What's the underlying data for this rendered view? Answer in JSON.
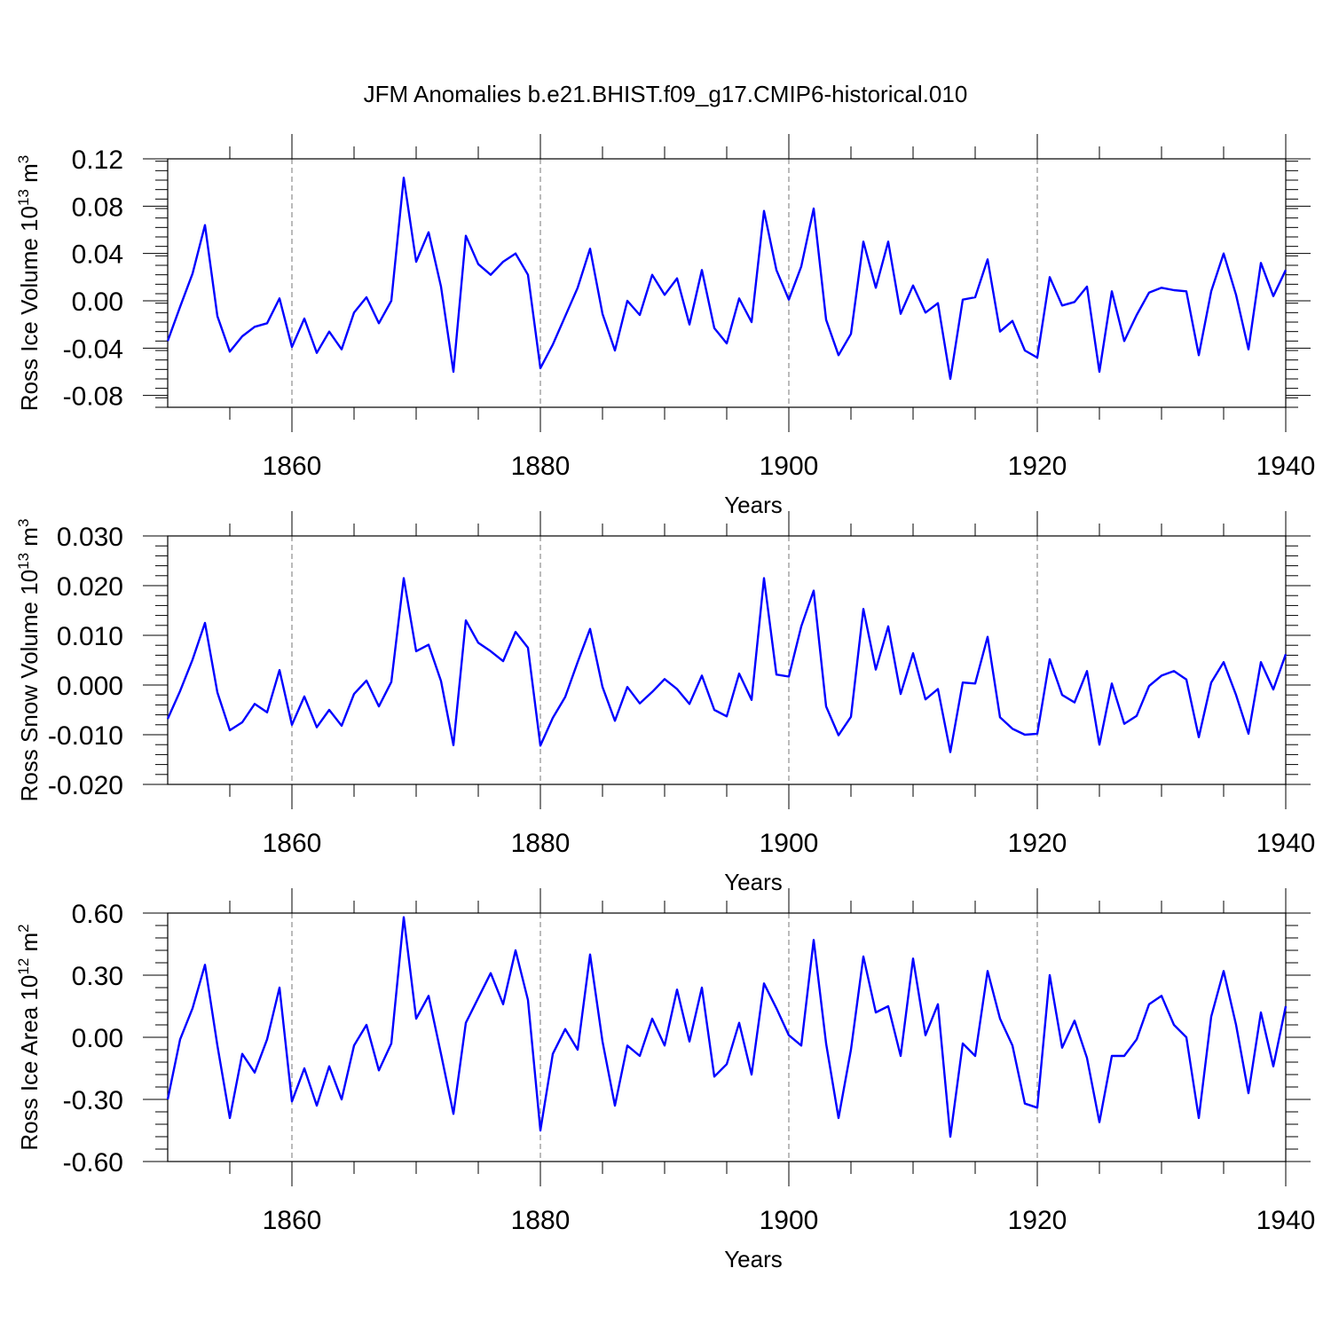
{
  "title": "JFM Anomalies b.e21.BHIST.f09_g17.CMIP6-historical.010",
  "line_color": "#0000ff",
  "chart_data": [
    {
      "type": "line",
      "ylabel": "Ross Ice Volume 10",
      "ylabel_exp": "13",
      "ylabel_unit": " m",
      "ylabel_unit_exp": "3",
      "xlabel": "Years",
      "xlim": [
        1850,
        1940
      ],
      "ylim": [
        -0.09,
        0.12
      ],
      "grid": "dashed vertical lines at major x ticks",
      "xticks": [
        "1860",
        "1880",
        "1900",
        "1920",
        "1940"
      ],
      "xtick_values": [
        1860,
        1880,
        1900,
        1920,
        1940
      ],
      "yticks": [
        "0.12",
        "0.08",
        "0.04",
        "0.00",
        "-0.04",
        "-0.08"
      ],
      "ytick_values": [
        0.12,
        0.08,
        0.04,
        0.0,
        -0.04,
        -0.08
      ],
      "x_start": 1850,
      "values": [
        -0.034,
        -0.005,
        0.023,
        0.064,
        -0.013,
        -0.043,
        -0.03,
        -0.022,
        -0.019,
        0.002,
        -0.039,
        -0.015,
        -0.044,
        -0.026,
        -0.041,
        -0.01,
        0.003,
        -0.019,
        0.0,
        0.104,
        0.033,
        0.058,
        0.012,
        -0.06,
        0.055,
        0.031,
        0.022,
        0.033,
        0.04,
        0.022,
        -0.057,
        -0.037,
        -0.013,
        0.011,
        0.044,
        -0.011,
        -0.042,
        0.0,
        -0.012,
        0.022,
        0.005,
        0.019,
        -0.02,
        0.026,
        -0.023,
        -0.036,
        0.002,
        -0.018,
        0.076,
        0.026,
        0.001,
        0.029,
        0.078,
        -0.016,
        -0.046,
        -0.028,
        0.05,
        0.011,
        0.05,
        -0.011,
        0.013,
        -0.01,
        -0.002,
        -0.066,
        0.001,
        0.003,
        0.035,
        -0.026,
        -0.017,
        -0.042,
        -0.048,
        0.02,
        -0.004,
        -0.001,
        0.012,
        -0.06,
        0.008,
        -0.034,
        -0.012,
        0.007,
        0.011,
        0.009,
        0.008,
        -0.046,
        0.008,
        0.04,
        0.005,
        -0.041,
        0.032,
        0.004,
        0.026
      ]
    },
    {
      "type": "line",
      "ylabel": "Ross Snow Volume 10",
      "ylabel_exp": "13",
      "ylabel_unit": " m",
      "ylabel_unit_exp": "3",
      "xlabel": "Years",
      "xlim": [
        1850,
        1940
      ],
      "ylim": [
        -0.02,
        0.03
      ],
      "grid": "dashed vertical lines at major x ticks",
      "xticks": [
        "1860",
        "1880",
        "1900",
        "1920",
        "1940"
      ],
      "xtick_values": [
        1860,
        1880,
        1900,
        1920,
        1940
      ],
      "yticks": [
        "0.030",
        "0.020",
        "0.010",
        "0.000",
        "-0.010",
        "-0.020"
      ],
      "ytick_values": [
        0.03,
        0.02,
        0.01,
        0.0,
        -0.01,
        -0.02
      ],
      "x_start": 1850,
      "values": [
        -0.0068,
        -0.0012,
        0.0051,
        0.0125,
        -0.0015,
        -0.0091,
        -0.0075,
        -0.0038,
        -0.0055,
        0.003,
        -0.008,
        -0.0023,
        -0.0085,
        -0.005,
        -0.0082,
        -0.0018,
        0.0009,
        -0.0043,
        0.0006,
        0.0215,
        0.0068,
        0.0081,
        0.0008,
        -0.0121,
        0.013,
        0.0085,
        0.0068,
        0.0048,
        0.0107,
        0.0075,
        -0.0122,
        -0.0066,
        -0.0024,
        0.0046,
        0.0113,
        -0.0004,
        -0.0072,
        -0.0004,
        -0.0037,
        -0.0014,
        0.0012,
        -0.0008,
        -0.0038,
        0.0019,
        -0.005,
        -0.0063,
        0.0023,
        -0.003,
        0.0215,
        0.0021,
        0.0017,
        0.0118,
        0.019,
        -0.0043,
        -0.0101,
        -0.0064,
        0.0153,
        0.0031,
        0.0118,
        -0.0018,
        0.0064,
        -0.0029,
        -0.0008,
        -0.0135,
        0.0005,
        0.0003,
        0.0097,
        -0.0065,
        -0.0088,
        -0.01,
        -0.0098,
        0.0052,
        -0.002,
        -0.0035,
        0.0028,
        -0.012,
        0.0003,
        -0.0078,
        -0.0062,
        -0.0002,
        0.0019,
        0.0028,
        0.0011,
        -0.0105,
        0.0005,
        0.0046,
        -0.002,
        -0.0098,
        0.0046,
        -0.0009,
        0.0062
      ]
    },
    {
      "type": "line",
      "ylabel": "Ross Ice Area 10",
      "ylabel_exp": "12",
      "ylabel_unit": " m",
      "ylabel_unit_exp": "2",
      "xlabel": "Years",
      "xlim": [
        1850,
        1940
      ],
      "ylim": [
        -0.6,
        0.6
      ],
      "grid": "dashed vertical lines at major x ticks",
      "xticks": [
        "1860",
        "1880",
        "1900",
        "1920",
        "1940"
      ],
      "xtick_values": [
        1860,
        1880,
        1900,
        1920,
        1940
      ],
      "yticks": [
        "0.60",
        "0.30",
        "0.00",
        "-0.30",
        "-0.60"
      ],
      "ytick_values": [
        0.6,
        0.3,
        0.0,
        -0.3,
        -0.6
      ],
      "x_start": 1850,
      "values": [
        -0.3,
        -0.01,
        0.14,
        0.35,
        -0.04,
        -0.39,
        -0.08,
        -0.17,
        -0.01,
        0.24,
        -0.31,
        -0.15,
        -0.33,
        -0.14,
        -0.3,
        -0.04,
        0.06,
        -0.16,
        -0.03,
        0.58,
        0.09,
        0.2,
        -0.08,
        -0.37,
        0.07,
        0.19,
        0.31,
        0.16,
        0.42,
        0.18,
        -0.45,
        -0.08,
        0.04,
        -0.06,
        0.4,
        -0.02,
        -0.33,
        -0.04,
        -0.09,
        0.09,
        -0.04,
        0.23,
        -0.02,
        0.24,
        -0.19,
        -0.13,
        0.07,
        -0.18,
        0.26,
        0.14,
        0.01,
        -0.04,
        0.47,
        -0.03,
        -0.39,
        -0.06,
        0.39,
        0.12,
        0.15,
        -0.09,
        0.38,
        0.01,
        0.16,
        -0.48,
        -0.03,
        -0.09,
        0.32,
        0.09,
        -0.04,
        -0.32,
        -0.34,
        0.3,
        -0.05,
        0.08,
        -0.1,
        -0.41,
        -0.09,
        -0.09,
        -0.01,
        0.16,
        0.2,
        0.06,
        0.0,
        -0.39,
        0.1,
        0.32,
        0.06,
        -0.27,
        0.12,
        -0.14,
        0.15
      ]
    }
  ]
}
